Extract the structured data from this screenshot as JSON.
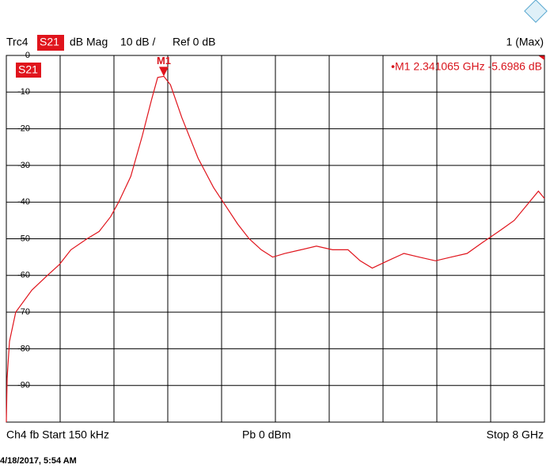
{
  "chart_data": {
    "type": "line",
    "trace": "Trc4",
    "parameter": "S21",
    "format": "dB Mag",
    "scale": "10 dB /",
    "reference": "Ref 0 dB",
    "channel_state": "1 (Max)",
    "trace_label": "S21",
    "marker": {
      "label": "M1",
      "x": 2.341065,
      "y": -5.6986,
      "readout": "•M1  2.341065 GHz  -5.6986 dB"
    },
    "footer_left": "Ch4  fb  Start  150 kHz",
    "footer_center": "Pb   0 dBm",
    "footer_right": "Stop  8 GHz",
    "timestamp": "4/18/2017, 5:54 AM",
    "xlim": [
      0.00015,
      8
    ],
    "ylim": [
      -100,
      0
    ],
    "yticks": [
      0,
      -10,
      -20,
      -30,
      -40,
      -50,
      -60,
      -70,
      -80,
      -90
    ],
    "grid": true,
    "series": [
      {
        "name": "S21",
        "color": "#e0141c",
        "x": [
          0.00015,
          0.012,
          0.047,
          0.14,
          0.38,
          0.61,
          0.79,
          0.96,
          1.2,
          1.38,
          1.55,
          1.67,
          1.85,
          2.02,
          2.16,
          2.25,
          2.341065,
          2.44,
          2.61,
          2.85,
          3.08,
          3.26,
          3.44,
          3.61,
          3.79,
          3.96,
          4.14,
          4.38,
          4.61,
          4.85,
          5.08,
          5.26,
          5.44,
          5.67,
          5.91,
          6.14,
          6.38,
          6.61,
          6.85,
          7.08,
          7.32,
          7.55,
          7.73,
          7.91,
          8
        ],
        "values": [
          -100,
          -88,
          -78,
          -70,
          -64,
          -60,
          -57,
          -53,
          -50,
          -48,
          -44,
          -40,
          -33,
          -22,
          -12,
          -6,
          -5.6986,
          -8,
          -17,
          -28,
          -36,
          -41,
          -46,
          -50,
          -53,
          -55,
          -54,
          -53,
          -52,
          -53,
          -53,
          -56,
          -58,
          -56,
          -54,
          -55,
          -56,
          -55,
          -54,
          -51,
          -48,
          -45,
          -41,
          -37,
          -39
        ]
      }
    ]
  }
}
